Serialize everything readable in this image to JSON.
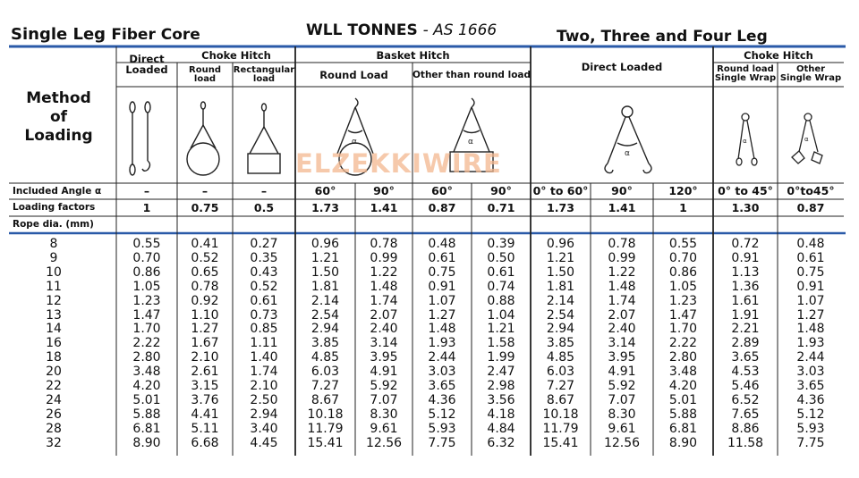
{
  "titles": {
    "single_leg": "Single Leg",
    "fiber_core": "Fiber Core",
    "wll": "WLL TONNES",
    "as_std": "- AS 1666",
    "multi_leg": "Two, Three and Four Leg"
  },
  "headers": {
    "direct_loaded_1": "Direct",
    "direct_loaded_2": "Loaded",
    "choke_hitch": "Choke Hitch",
    "round_load_1": "Round",
    "round_load_2": "load",
    "rect_load_1": "Rectangular",
    "rect_load_2": "load",
    "basket_hitch": "Basket Hitch",
    "basket_round": "Round Load",
    "basket_other": "Other than round load",
    "direct_loaded_multi": "Direct Loaded",
    "choke_hitch_multi": "Choke Hitch",
    "round_single_1": "Round load",
    "round_single_2": "Single Wrap",
    "other_single_1": "Other",
    "other_single_2": "Single Wrap"
  },
  "method": {
    "line1": "Method",
    "line2": "of",
    "line3": "Loading"
  },
  "labels": {
    "included_angle": "Included Angle α",
    "loading_factors": "Loading factors",
    "rope_dia": "Rope dia. (mm)"
  },
  "angles": [
    "–",
    "–",
    "–",
    "60°",
    "90°",
    "60°",
    "90°",
    "0° to 60°",
    "90°",
    "120°",
    "0° to 45°",
    "0°to45°"
  ],
  "factors": [
    "1",
    "0.75",
    "0.5",
    "1.73",
    "1.41",
    "0.87",
    "0.71",
    "1.73",
    "1.41",
    "1",
    "1.30",
    "0.87"
  ],
  "diameters": [
    "8",
    "9",
    "10",
    "11",
    "12",
    "13",
    "14",
    "16",
    "18",
    "20",
    "22",
    "24",
    "26",
    "28",
    "32"
  ],
  "columns": [
    [
      "0.55",
      "0.70",
      "0.86",
      "1.05",
      "1.23",
      "1.47",
      "1.70",
      "2.22",
      "2.80",
      "3.48",
      "4.20",
      "5.01",
      "5.88",
      "6.81",
      "8.90"
    ],
    [
      "0.41",
      "0.52",
      "0.65",
      "0.78",
      "0.92",
      "1.10",
      "1.27",
      "1.67",
      "2.10",
      "2.61",
      "3.15",
      "3.76",
      "4.41",
      "5.11",
      "6.68"
    ],
    [
      "0.27",
      "0.35",
      "0.43",
      "0.52",
      "0.61",
      "0.73",
      "0.85",
      "1.11",
      "1.40",
      "1.74",
      "2.10",
      "2.50",
      "2.94",
      "3.40",
      "4.45"
    ],
    [
      "0.96",
      "1.21",
      "1.50",
      "1.81",
      "2.14",
      "2.54",
      "2.94",
      "3.85",
      "4.85",
      "6.03",
      "7.27",
      "8.67",
      "10.18",
      "11.79",
      "15.41"
    ],
    [
      "0.78",
      "0.99",
      "1.22",
      "1.48",
      "1.74",
      "2.07",
      "2.40",
      "3.14",
      "3.95",
      "4.91",
      "5.92",
      "7.07",
      "8.30",
      "9.61",
      "12.56"
    ],
    [
      "0.48",
      "0.61",
      "0.75",
      "0.91",
      "1.07",
      "1.27",
      "1.48",
      "1.93",
      "2.44",
      "3.03",
      "3.65",
      "4.36",
      "5.12",
      "5.93",
      "7.75"
    ],
    [
      "0.39",
      "0.50",
      "0.61",
      "0.74",
      "0.88",
      "1.04",
      "1.21",
      "1.58",
      "1.99",
      "2.47",
      "2.98",
      "3.56",
      "4.18",
      "4.84",
      "6.32"
    ],
    [
      "0.96",
      "1.21",
      "1.50",
      "1.81",
      "2.14",
      "2.54",
      "2.94",
      "3.85",
      "4.85",
      "6.03",
      "7.27",
      "8.67",
      "10.18",
      "11.79",
      "15.41"
    ],
    [
      "0.78",
      "0.99",
      "1.22",
      "1.48",
      "1.74",
      "2.07",
      "2.40",
      "3.14",
      "3.95",
      "4.91",
      "5.92",
      "7.07",
      "8.30",
      "9.61",
      "12.56"
    ],
    [
      "0.55",
      "0.70",
      "0.86",
      "1.05",
      "1.23",
      "1.47",
      "1.70",
      "2.22",
      "2.80",
      "3.48",
      "4.20",
      "5.01",
      "5.88",
      "6.81",
      "8.90"
    ],
    [
      "0.72",
      "0.91",
      "1.13",
      "1.36",
      "1.61",
      "1.91",
      "2.21",
      "2.89",
      "3.65",
      "4.53",
      "5.46",
      "6.52",
      "7.65",
      "8.86",
      "11.58"
    ],
    [
      "0.48",
      "0.61",
      "0.75",
      "0.91",
      "1.07",
      "1.27",
      "1.48",
      "1.93",
      "2.44",
      "3.03",
      "3.65",
      "4.36",
      "5.12",
      "5.93",
      "7.75"
    ]
  ],
  "watermark": "ELZEKKIWIRE",
  "colors": {
    "rule_blue": "#2a5aa8",
    "grid": "#222222",
    "watermark": "#f3b890"
  }
}
